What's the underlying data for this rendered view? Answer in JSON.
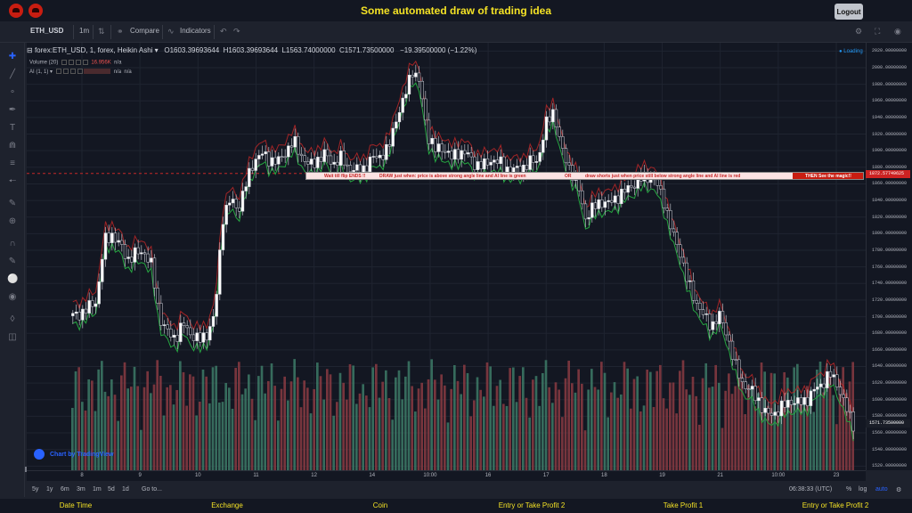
{
  "app": {
    "title": "Some automated draw of trading idea",
    "logout_label": "Logout"
  },
  "toolbar": {
    "symbol": "ETH_USD",
    "interval": "1m",
    "compare_label": "Compare",
    "indicators_label": "Indicators"
  },
  "legend": {
    "main": "forex:ETH_USD, 1, forex, Heikin Ashi",
    "open": "O1603.39693644",
    "high": "H1603.39693644",
    "low": "L1563.74000000",
    "close": "C1571.73500000",
    "change": "−19.39500000 (−1.22%)",
    "volume_label": "Volume (20)",
    "volume_value": "16.956K",
    "volume_na": "n/a",
    "ai_label": "AI (1, 1)",
    "ai_na1": "n/a",
    "ai_na2": "n/a",
    "loading": "Loading"
  },
  "banner": {
    "part1": "Wait till flip ENDS !!",
    "part2": "DRAW just when:  price is above strong angle line and AI line is green",
    "part3": "OR",
    "part4": "draw shorts just when price still below strong angle line and AI line is red",
    "magic": "THEN See the magic!!"
  },
  "yaxis": {
    "ticks": [
      "2020.00000000",
      "2000.00000000",
      "1980.00000000",
      "1960.00000000",
      "1940.00000000",
      "1920.00000000",
      "1900.00000000",
      "1880.00000000",
      "1860.00000000",
      "1840.00000000",
      "1820.00000000",
      "1800.00000000",
      "1780.00000000",
      "1760.00000000",
      "1740.00000000",
      "1720.00000000",
      "1700.00000000",
      "1680.00000000",
      "1660.00000000",
      "1640.00000000",
      "1620.00000000",
      "1600.00000000",
      "1580.00000000",
      "1560.00000000",
      "1540.00000000",
      "1520.00000000"
    ],
    "line_price": "1872.57749625",
    "current_price": "1571.73500000"
  },
  "xaxis": {
    "ticks": [
      "8",
      "9",
      "10",
      "11",
      "12",
      "14",
      "10:00",
      "16",
      "17",
      "18",
      "19",
      "21",
      "10:00",
      "23"
    ]
  },
  "bottombar": {
    "ranges": [
      "5y",
      "1y",
      "6m",
      "3m",
      "1m",
      "5d",
      "1d"
    ],
    "goto": "Go to...",
    "clock": "06:38:33 (UTC)",
    "pct": "%",
    "log": "log",
    "auto": "auto"
  },
  "watermark": "Chart by TradingView",
  "footer": {
    "columns": [
      "Date Time",
      "Exchange",
      "Coin",
      "Entry or Take Profit 2",
      "Take Profit 1",
      "Entry or Take Profit 2"
    ]
  },
  "chart_data": {
    "type": "candlestick",
    "style": "Heikin Ashi",
    "symbol": "forex:ETH_USD",
    "interval": "1",
    "ylim": [
      1515,
      2030
    ],
    "x": [
      "8",
      "9",
      "10",
      "11",
      "12",
      "14",
      "16",
      "17",
      "18",
      "19",
      "21",
      "23"
    ],
    "close_path": [
      1700,
      1705,
      1710,
      1720,
      1790,
      1800,
      1785,
      1770,
      1775,
      1780,
      1760,
      1700,
      1680,
      1675,
      1690,
      1680,
      1670,
      1680,
      1700,
      1820,
      1840,
      1830,
      1860,
      1890,
      1895,
      1890,
      1885,
      1900,
      1910,
      1895,
      1880,
      1890,
      1895,
      1885,
      1890,
      1880,
      1875,
      1880,
      1890,
      1895,
      1900,
      1940,
      1960,
      2000,
      1980,
      1920,
      1900,
      1905,
      1890,
      1900,
      1895,
      1885,
      1880,
      1890,
      1885,
      1880,
      1875,
      1880,
      1885,
      1890,
      1930,
      1950,
      1900,
      1880,
      1860,
      1820,
      1830,
      1840,
      1835,
      1845,
      1850,
      1860,
      1865,
      1870,
      1860,
      1840,
      1800,
      1780,
      1740,
      1720,
      1700,
      1690,
      1700,
      1680,
      1640,
      1620,
      1610,
      1600,
      1580,
      1585,
      1590,
      1600,
      1595,
      1600,
      1610,
      1620,
      1630,
      1620,
      1590,
      1571.735
    ],
    "series_colors": {
      "up": "#d1d4dc",
      "down": "#ffffff",
      "ai_green": "#26a641",
      "ai_red": "#c62828",
      "vol_up": "#3d7a66",
      "vol_down": "#8a3b42"
    }
  }
}
